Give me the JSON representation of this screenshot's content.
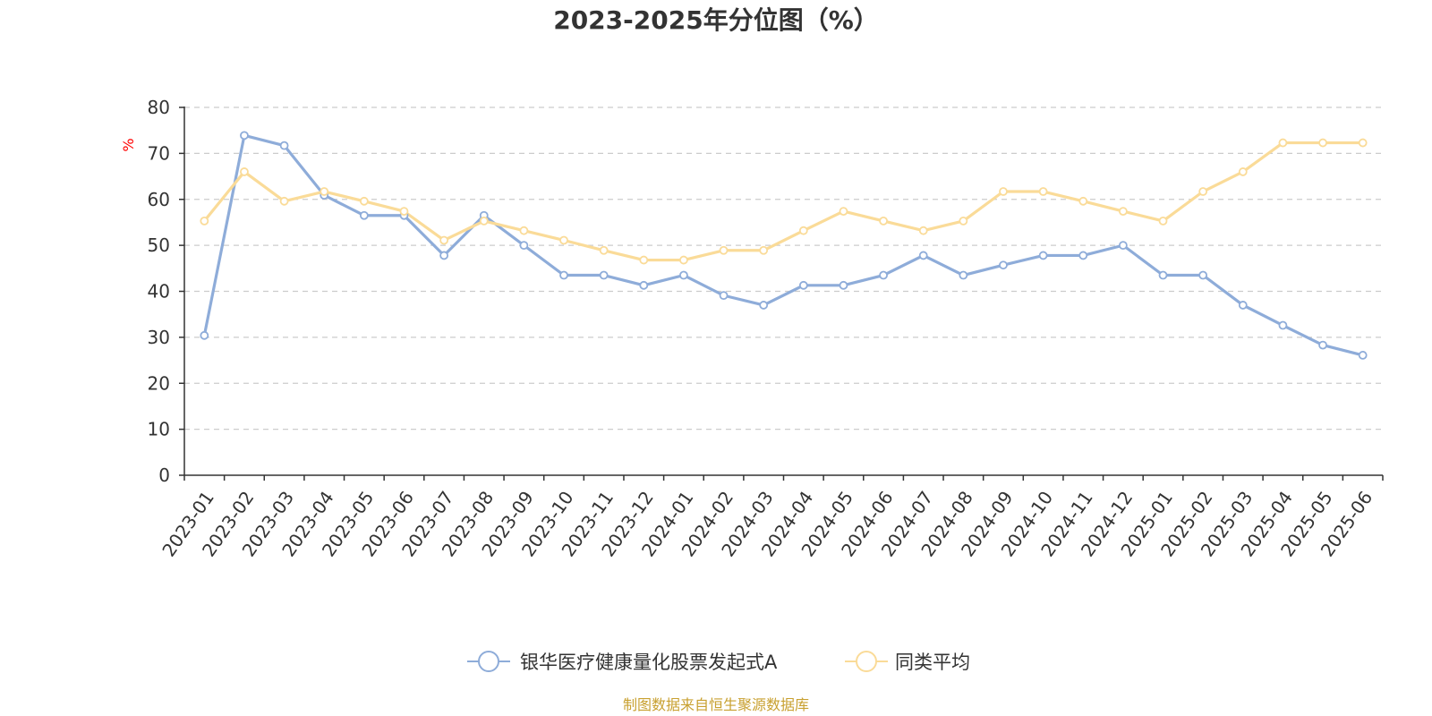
{
  "chart_data": {
    "type": "line",
    "title": "2023-2025年分位图（%）",
    "ylabel": "%",
    "xlabel": "",
    "ylim": [
      0,
      80
    ],
    "yticks": [
      0,
      10,
      20,
      30,
      40,
      50,
      60,
      70,
      80
    ],
    "grid": true,
    "legend_position": "bottom",
    "categories": [
      "2023-01",
      "2023-02",
      "2023-03",
      "2023-04",
      "2023-05",
      "2023-06",
      "2023-07",
      "2023-08",
      "2023-09",
      "2023-10",
      "2023-11",
      "2023-12",
      "2024-01",
      "2024-02",
      "2024-03",
      "2024-04",
      "2024-05",
      "2024-06",
      "2024-07",
      "2024-08",
      "2024-09",
      "2024-10",
      "2024-11",
      "2024-12",
      "2025-01",
      "2025-02",
      "2025-03",
      "2025-04",
      "2025-05",
      "2025-06"
    ],
    "series": [
      {
        "name": "银华医疗健康量化股票发起式A",
        "color": "#8EACD9",
        "values": [
          30.4,
          73.9,
          71.7,
          60.9,
          56.5,
          56.5,
          47.8,
          56.5,
          50.0,
          43.5,
          43.5,
          41.3,
          43.5,
          39.1,
          37.0,
          41.3,
          41.3,
          43.5,
          47.8,
          43.5,
          45.7,
          47.8,
          47.8,
          50.0,
          43.5,
          43.5,
          37.0,
          32.6,
          28.3,
          26.1
        ]
      },
      {
        "name": "同类平均",
        "color": "#FADB98",
        "values": [
          55.3,
          66.0,
          59.6,
          61.7,
          59.6,
          57.4,
          51.1,
          55.3,
          53.2,
          51.1,
          48.9,
          46.8,
          46.8,
          48.9,
          48.9,
          53.2,
          57.4,
          55.3,
          53.2,
          55.3,
          61.7,
          61.7,
          59.6,
          57.4,
          55.3,
          61.7,
          66.0,
          72.3,
          72.3,
          72.3
        ]
      }
    ],
    "colors": {
      "axis": "#333333",
      "grid": "#cccccc",
      "unit_label": "#ff0000",
      "source_text": "#c8a030"
    }
  },
  "footer": {
    "source": "制图数据来自恒生聚源数据库"
  }
}
